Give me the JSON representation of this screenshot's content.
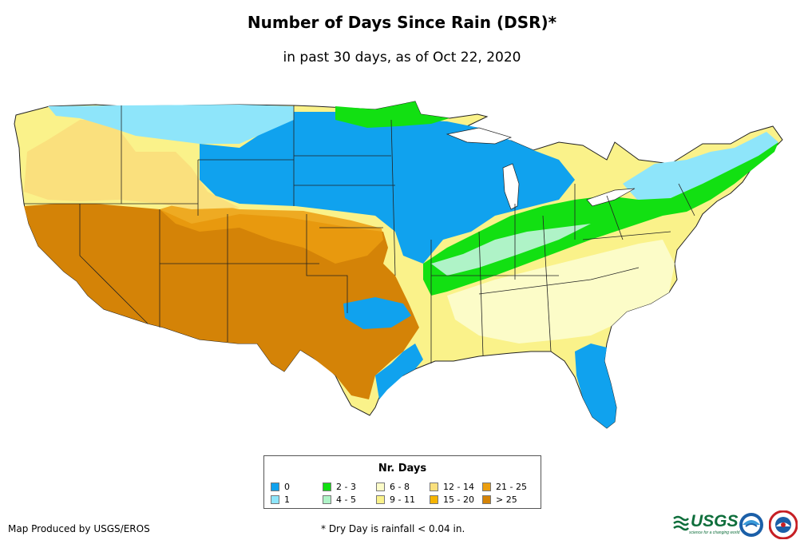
{
  "title": "Number of Days Since Rain (DSR)*",
  "subtitle": "in past 30 days, as of Oct 22, 2020",
  "legend": {
    "title": "Nr. Days",
    "items": [
      {
        "label": "0",
        "color": "#10a2ee"
      },
      {
        "label": "1",
        "color": "#8ee5fa"
      },
      {
        "label": "2 - 3",
        "color": "#12e012"
      },
      {
        "label": "4 - 5",
        "color": "#aff3c7"
      },
      {
        "label": "6 - 8",
        "color": "#fcfcc8"
      },
      {
        "label": "9 - 11",
        "color": "#faf28a"
      },
      {
        "label": "12 - 14",
        "color": "#fae07d"
      },
      {
        "label": "15 - 20",
        "color": "#f5b400"
      },
      {
        "label": "21 - 25",
        "color": "#eb9e0f"
      },
      {
        "label": "> 25",
        "color": "#d48307"
      }
    ]
  },
  "footer": {
    "producer": "Map Produced by USGS/EROS",
    "footnote": "* Dry Day is rainfall < 0.04 in.",
    "usgs_logo_text": "USGS",
    "usgs_tagline": "science for a changing world"
  }
}
